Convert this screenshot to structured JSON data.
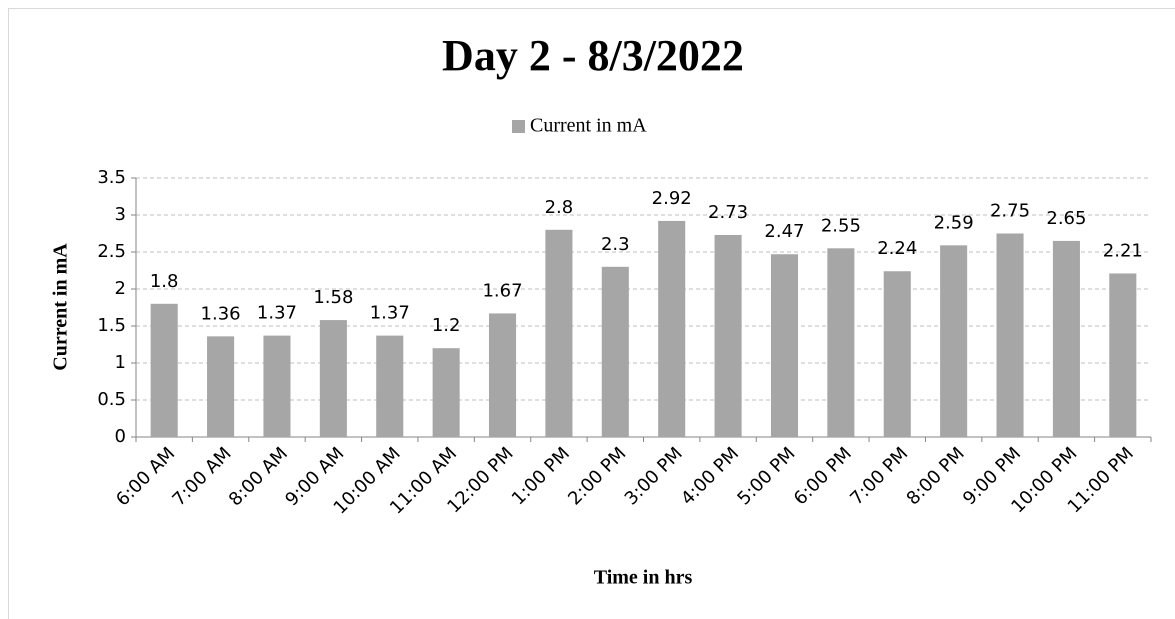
{
  "chart_data": {
    "type": "bar",
    "title": "Day 2 - 8/3/2022",
    "x_label": "Time in hrs",
    "y_label": "Current in mA",
    "categories": [
      "6:00 AM",
      "7:00 AM",
      "8:00 AM",
      "9:00 AM",
      "10:00 AM",
      "11:00 AM",
      "12:00 PM",
      "1:00 PM",
      "2:00 PM",
      "3:00 PM",
      "4:00 PM",
      "5:00 PM",
      "6:00 PM",
      "7:00 PM",
      "8:00 PM",
      "9:00 PM",
      "10:00 PM",
      "11:00 PM"
    ],
    "series": [
      {
        "name": "Current in mA",
        "color": "#a6a6a6",
        "values": [
          1.8,
          1.36,
          1.37,
          1.58,
          1.37,
          1.2,
          1.67,
          2.8,
          2.3,
          2.92,
          2.73,
          2.47,
          2.55,
          2.24,
          2.59,
          2.75,
          2.65,
          2.21
        ]
      }
    ],
    "ylim": [
      0,
      3.5
    ],
    "yticks": [
      0,
      0.5,
      1,
      1.5,
      2,
      2.5,
      3,
      3.5
    ],
    "grid": true,
    "legend": "top"
  }
}
